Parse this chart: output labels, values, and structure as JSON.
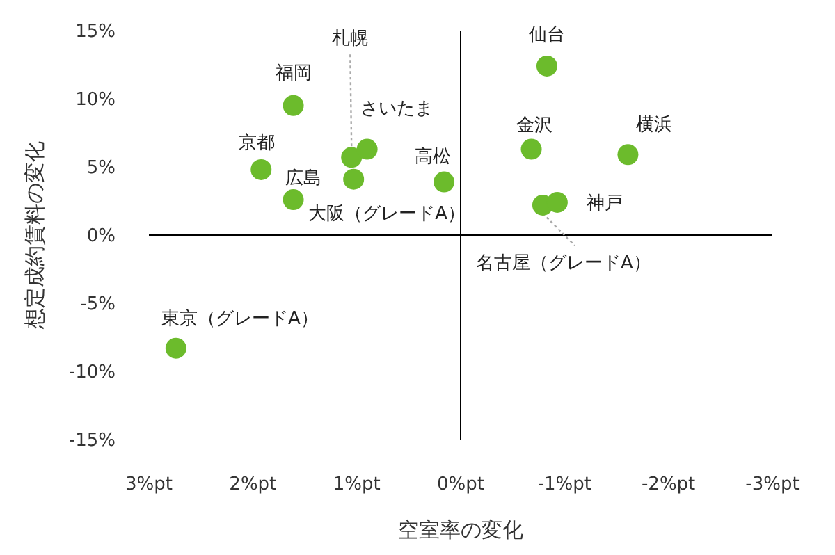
{
  "chart_data": {
    "type": "scatter",
    "xlabel": "空室率の変化",
    "ylabel": "想定成約賃料の変化",
    "xlim": [
      3,
      -3
    ],
    "ylim": [
      -15,
      15
    ],
    "xticks": [
      {
        "value": 3,
        "label": "3%pt"
      },
      {
        "value": 2,
        "label": "2%pt"
      },
      {
        "value": 1,
        "label": "1%pt"
      },
      {
        "value": 0,
        "label": "0%pt"
      },
      {
        "value": -1,
        "label": "-1%pt"
      },
      {
        "value": -2,
        "label": "-2%pt"
      },
      {
        "value": -3,
        "label": "-3%pt"
      }
    ],
    "yticks": [
      {
        "value": 15,
        "label": "15%"
      },
      {
        "value": 10,
        "label": "10%"
      },
      {
        "value": 5,
        "label": "5%"
      },
      {
        "value": 0,
        "label": "0%"
      },
      {
        "value": -5,
        "label": "-5%"
      },
      {
        "value": -10,
        "label": "-10%"
      },
      {
        "value": -15,
        "label": "-15%"
      }
    ],
    "x": [
      2.74,
      1.61,
      1.92,
      1.61,
      1.05,
      1.03,
      0.9,
      0.16,
      -0.83,
      -0.68,
      -1.61,
      -0.79,
      -0.93
    ],
    "series": [
      {
        "color": "#6cbb2c",
        "values": [
          -8.3,
          9.5,
          4.8,
          2.6,
          5.7,
          4.1,
          6.3,
          3.9,
          12.4,
          6.3,
          5.9,
          2.2,
          2.4
        ]
      }
    ],
    "marker": "circle",
    "annotations": [
      {
        "text": "東京（グレードA）",
        "x": 2.74,
        "y": -8.3
      },
      {
        "text": "福岡",
        "x": 1.61,
        "y": 9.5
      },
      {
        "text": "京都",
        "x": 1.92,
        "y": 4.8
      },
      {
        "text": "広島",
        "x": 1.61,
        "y": 2.6
      },
      {
        "text": "札幌",
        "x": 1.05,
        "y": 5.7
      },
      {
        "text": "大阪（グレードA）",
        "x": 1.03,
        "y": 4.1
      },
      {
        "text": "さいたま",
        "x": 0.9,
        "y": 6.3
      },
      {
        "text": "高松",
        "x": 0.16,
        "y": 3.9
      },
      {
        "text": "仙台",
        "x": -0.83,
        "y": 12.4
      },
      {
        "text": "金沢",
        "x": -0.68,
        "y": 6.3
      },
      {
        "text": "横浜",
        "x": -1.61,
        "y": 5.9
      },
      {
        "text": "名古屋（グレードA）",
        "x": -0.79,
        "y": 2.2
      },
      {
        "text": "神戸",
        "x": -0.93,
        "y": 2.4
      }
    ]
  }
}
